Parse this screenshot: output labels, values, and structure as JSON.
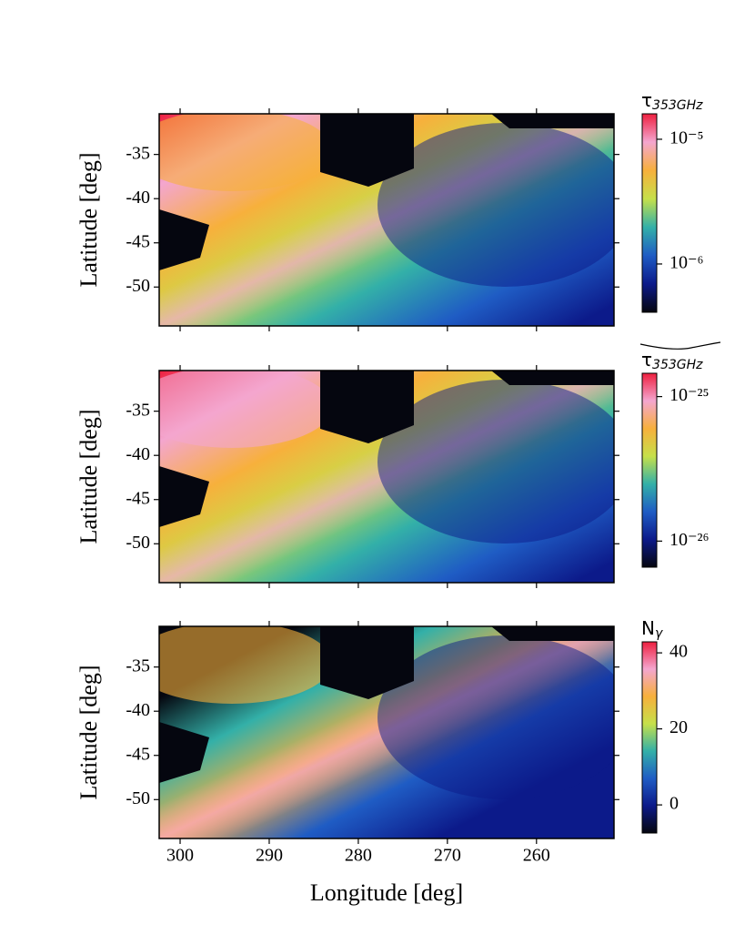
{
  "chart_data": [
    {
      "type": "image",
      "ylabel": "Latitude [deg]",
      "xlim": [
        302.35,
        251.3
      ],
      "ylim": [
        -54.4,
        -30.4
      ],
      "xticks": [
        300,
        290,
        280,
        270,
        260
      ],
      "yticks": [
        -35,
        -40,
        -45,
        -50
      ],
      "colorbar_label": {
        "symbol": "τ",
        "subscript": "353GHz"
      },
      "colorbar_scale": "log",
      "clim": [
        4.1e-07,
        1.6e-05
      ],
      "cticks": [
        {
          "value": 1e-05,
          "label": "10⁻⁵"
        },
        {
          "value": 1e-06,
          "label": "10⁻⁶"
        }
      ],
      "colormap": [
        "#05060f",
        "#0c1a8a",
        "#1f5cc4",
        "#33b0a8",
        "#c6e04a",
        "#f7b03c",
        "#f4a6cf",
        "#ee1f3f"
      ]
    },
    {
      "type": "image",
      "ylabel": "Latitude [deg]",
      "xlim": [
        302.35,
        251.3
      ],
      "ylim": [
        -54.4,
        -30.4
      ],
      "xticks": [
        300,
        290,
        280,
        270,
        260
      ],
      "yticks": [
        -35,
        -40,
        -45,
        -50
      ],
      "colorbar_label": {
        "symbol": "τ",
        "subscript": "353GHz",
        "accent": "tilde"
      },
      "colorbar_scale": "log",
      "clim": [
        6.6e-27,
        1.45e-25
      ],
      "cticks": [
        {
          "value": 1e-25,
          "label": "10⁻²⁵"
        },
        {
          "value": 1e-26,
          "label": "10⁻²⁶"
        }
      ],
      "colormap": [
        "#05060f",
        "#0c1a8a",
        "#1f5cc4",
        "#33b0a8",
        "#c6e04a",
        "#f7b03c",
        "#f4a6cf",
        "#ee1f3f"
      ]
    },
    {
      "type": "image",
      "ylabel": "Latitude [deg]",
      "xlabel": "Longitude [deg]",
      "xlim": [
        302.35,
        251.3
      ],
      "ylim": [
        -54.4,
        -30.4
      ],
      "xticks": [
        300,
        290,
        280,
        270,
        260
      ],
      "yticks": [
        -35,
        -40,
        -45,
        -50
      ],
      "colorbar_label": {
        "symbol": "N",
        "subscript": "γ"
      },
      "colorbar_scale": "linear",
      "clim": [
        -7.4,
        42.9
      ],
      "cticks": [
        40,
        20,
        0
      ],
      "colormap": [
        "#05060f",
        "#0c1a8a",
        "#1f5cc4",
        "#33b0a8",
        "#c6e04a",
        "#f7b03c",
        "#f4a6cf",
        "#ee1f3f"
      ]
    }
  ]
}
